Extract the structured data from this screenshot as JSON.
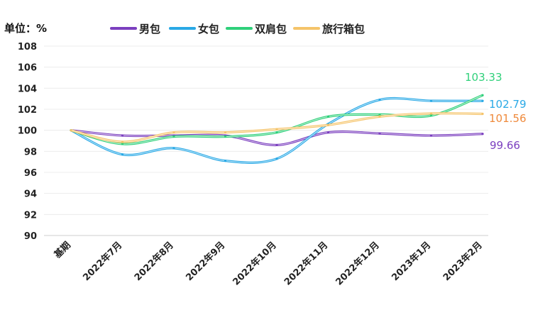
{
  "unit_label": "单位：%",
  "chart_data": {
    "type": "line",
    "categories": [
      "基期",
      "2022年7月",
      "2022年8月",
      "2022年9月",
      "2022年10月",
      "2022年11月",
      "2022年12月",
      "2023年1月",
      "2023年2月"
    ],
    "ylim": [
      90,
      108
    ],
    "yticks": [
      90,
      92,
      94,
      96,
      98,
      100,
      102,
      104,
      106,
      108
    ],
    "grid": true,
    "legend_position": "top",
    "series": [
      {
        "name": "男包",
        "color": "#7b3fbf",
        "values": [
          100,
          99.5,
          99.5,
          99.5,
          98.6,
          99.8,
          99.7,
          99.5,
          99.66
        ],
        "end_label": "99.66"
      },
      {
        "name": "女包",
        "color": "#29a9e6",
        "values": [
          100,
          97.7,
          98.3,
          97.1,
          97.3,
          100.6,
          102.9,
          102.8,
          102.79
        ],
        "end_label": "102.79"
      },
      {
        "name": "双肩包",
        "color": "#2fd07a",
        "values": [
          100,
          98.7,
          99.4,
          99.4,
          99.8,
          101.3,
          101.5,
          101.4,
          103.33
        ],
        "end_label": "103.33"
      },
      {
        "name": "旅行箱包",
        "color": "#f5c46a",
        "values": [
          100,
          98.9,
          99.8,
          99.8,
          100.1,
          100.5,
          101.3,
          101.6,
          101.56
        ],
        "end_label": "101.56",
        "label_color": "#ef8a3c"
      }
    ]
  }
}
